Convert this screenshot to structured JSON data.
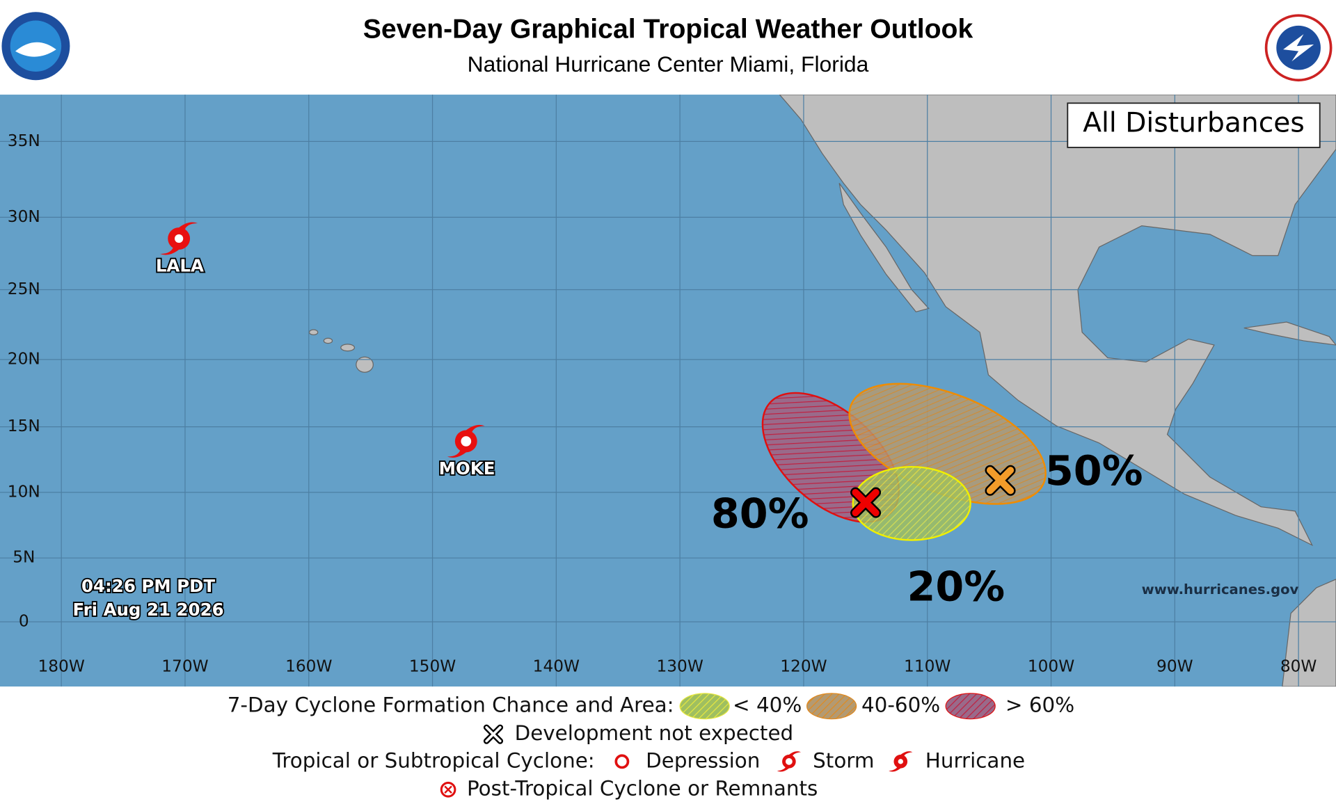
{
  "header": {
    "title": "Seven-Day Graphical Tropical Weather Outlook",
    "subtitle": "National Hurricane Center  Miami, Florida"
  },
  "map": {
    "panel_label": "All Disturbances",
    "lat_labels": [
      "35N",
      "30N",
      "25N",
      "20N",
      "15N",
      "10N",
      "5N",
      "0"
    ],
    "lon_labels": [
      "180W",
      "170W",
      "160W",
      "150W",
      "140W",
      "130W",
      "120W",
      "110W",
      "100W",
      "90W",
      "80W"
    ],
    "storms": [
      {
        "name": "LALA"
      },
      {
        "name": "MOKE"
      }
    ],
    "disturbances": [
      {
        "chance": "80%"
      },
      {
        "chance": "50%"
      },
      {
        "chance": "20%"
      }
    ],
    "timestamp": [
      "04:26 PM PDT",
      "Fri Aug 21 2026"
    ],
    "url": "www.hurricanes.gov"
  },
  "legend": {
    "formation_label": "7-Day Cyclone Formation Chance and Area:",
    "low": "< 40%",
    "mid": "40-60%",
    "high": "> 60%",
    "not_expected": "Development not expected",
    "cyclone_label": "Tropical or Subtropical Cyclone:",
    "depression": "Depression",
    "storm": "Storm",
    "hurricane": "Hurricane",
    "post_tropical": "Post-Tropical Cyclone or Remnants"
  }
}
